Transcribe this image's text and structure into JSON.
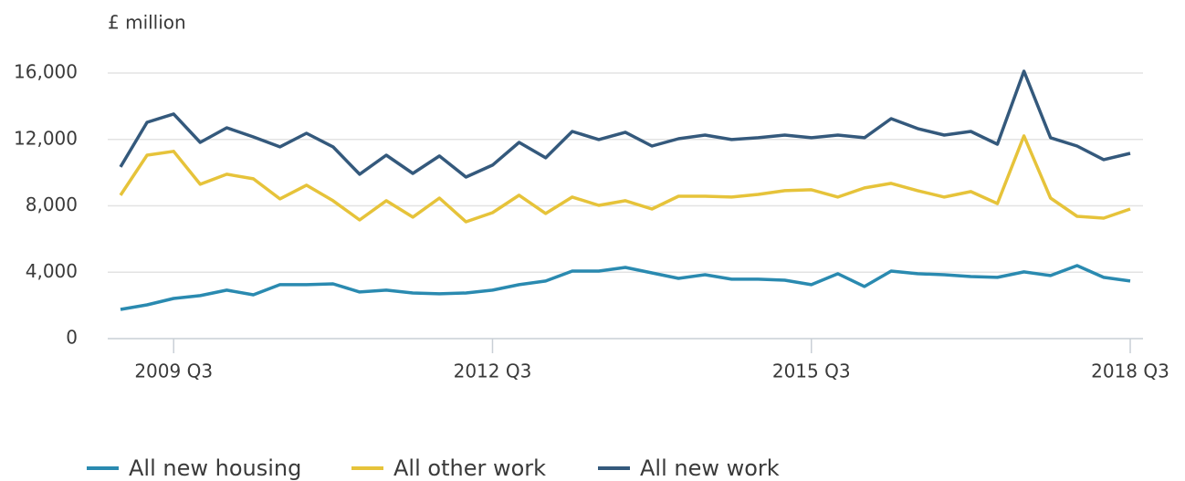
{
  "chart_data": {
    "type": "line",
    "y_label": "£ million",
    "categories": [
      null,
      null,
      "2009 Q3",
      null,
      null,
      null,
      null,
      null,
      null,
      null,
      null,
      null,
      null,
      null,
      "2012 Q3",
      null,
      null,
      null,
      null,
      null,
      null,
      null,
      null,
      null,
      null,
      null,
      "2015 Q3",
      null,
      null,
      null,
      null,
      null,
      null,
      null,
      null,
      null,
      null,
      null,
      "2018 Q3"
    ],
    "ylim": [
      0,
      16000
    ],
    "yticks": [
      0,
      {
        "value": 4000,
        "label": "4,000"
      },
      {
        "value": 8000,
        "label": "8,000"
      },
      {
        "value": 12000,
        "label": "12,000"
      },
      {
        "value": 16000,
        "label": "16,000"
      }
    ],
    "grid": true,
    "legend": "bottom",
    "series": [
      {
        "name": "All new housing",
        "color": "#2a8ab0",
        "values": [
          1760,
          2035,
          2420,
          2590,
          2920,
          2640,
          3250,
          3250,
          3300,
          2810,
          2920,
          2750,
          2700,
          2750,
          2920,
          3250,
          3470,
          4070,
          4070,
          4290,
          3960,
          3630,
          3850,
          3580,
          3580,
          3520,
          3250,
          3910,
          3140,
          4070,
          3910,
          3850,
          3740,
          3690,
          4020,
          3800,
          4400,
          3690,
          3470
        ]
      },
      {
        "name": "All other work",
        "color": "#e6c33a",
        "values": [
          8640,
          11050,
          11280,
          9300,
          9900,
          9630,
          8420,
          9240,
          8310,
          7150,
          8310,
          7320,
          8470,
          7040,
          7590,
          8640,
          7540,
          8530,
          8030,
          8310,
          7810,
          8580,
          8580,
          8530,
          8690,
          8910,
          8970,
          8530,
          9080,
          9350,
          8910,
          8530,
          8860,
          8140,
          12210,
          8470,
          7370,
          7260,
          7810
        ]
      },
      {
        "name": "All new work",
        "color": "#34597c",
        "values": [
          10340,
          13030,
          13530,
          11820,
          12700,
          12150,
          11550,
          12370,
          11550,
          9900,
          11050,
          9950,
          11000,
          9730,
          10450,
          11820,
          10890,
          12480,
          11990,
          12430,
          11600,
          12040,
          12260,
          11990,
          12100,
          12260,
          12100,
          12260,
          12100,
          13250,
          12650,
          12260,
          12480,
          11710,
          16110,
          12100,
          11600,
          10780,
          11160
        ]
      }
    ]
  }
}
